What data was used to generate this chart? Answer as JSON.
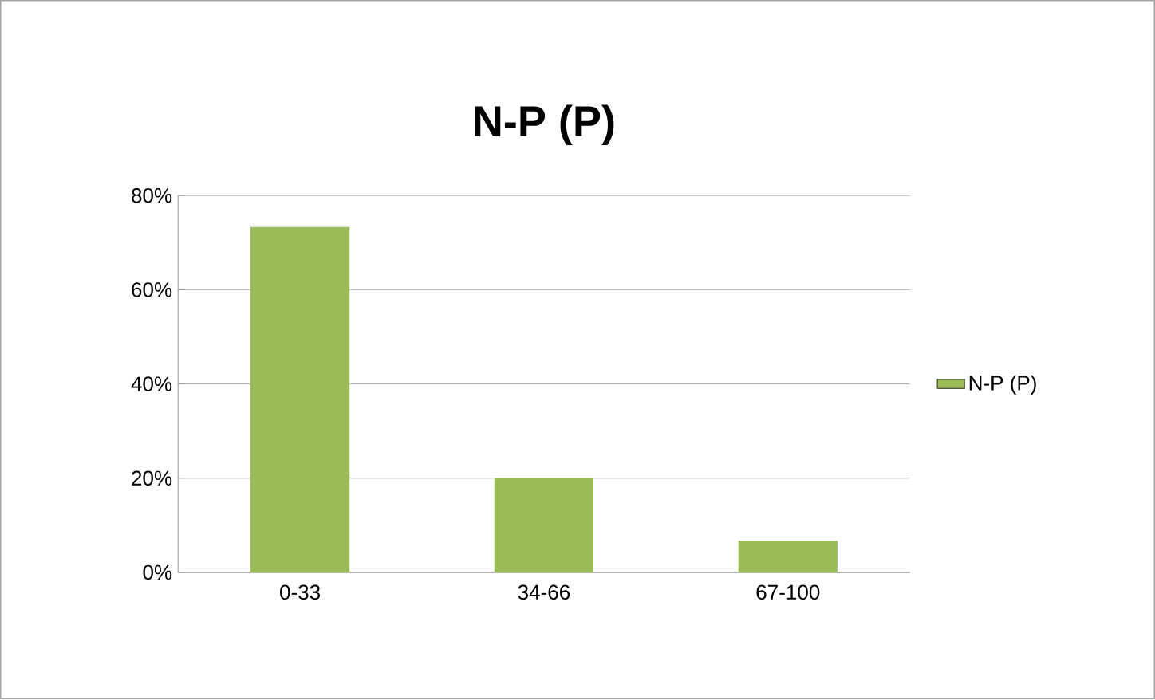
{
  "chart_data": {
    "type": "bar",
    "title": "N-P (P)",
    "categories": [
      "0-33",
      "34-66",
      "67-100"
    ],
    "series": [
      {
        "name": "N-P (P)",
        "color": "#9bbb59",
        "values": [
          0.733,
          0.2,
          0.067
        ]
      }
    ],
    "ylim": [
      0,
      0.8
    ],
    "yticks": [
      {
        "value": 0,
        "label": "0%"
      },
      {
        "value": 0.2,
        "label": "20%"
      },
      {
        "value": 0.4,
        "label": "40%"
      },
      {
        "value": 0.6,
        "label": "60%"
      },
      {
        "value": 0.8,
        "label": "80%"
      }
    ],
    "grid": "y",
    "legend": "right"
  }
}
